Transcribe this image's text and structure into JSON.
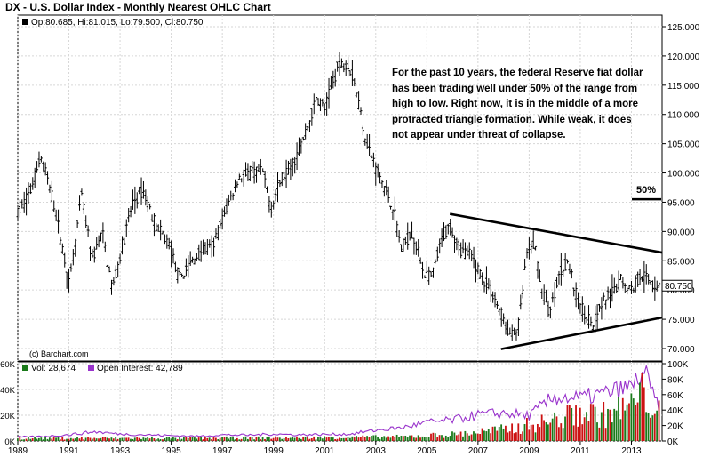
{
  "title": "DX - U.S. Dollar Index - Monthly Nearest OHLC Chart",
  "price_legend": "Op:80.685, Hi:81.015, Lo:79.500, Cl:80.750",
  "vol_legend": "Vol: 28,674",
  "oi_legend": "Open Interest: 42,789",
  "copyright": "(c) Barchart.com",
  "annotation_lines": [
    "For the past 10 years, the federal Reserve fiat dollar",
    "has been trading well under 50% of the range from",
    "high to low.  Right now, it is in the middle of a more",
    "protracted triangle formation.  While weak, it  does",
    "not appear under threat of collapse."
  ],
  "fifty_label": "50%",
  "last_price_label": "80.750",
  "colors": {
    "bars": "#000000",
    "vol_up": "#1a7a1a",
    "vol_down": "#cc1111",
    "open_interest": "#9933cc"
  },
  "chart_data": {
    "type": "ohlc",
    "price_axis": {
      "min": 70,
      "max": 125,
      "ticks": [
        "125.000",
        "120.000",
        "115.000",
        "110.000",
        "105.000",
        "100.000",
        "95.000",
        "90.000",
        "85.000",
        "80.000",
        "75.000",
        "70.000"
      ]
    },
    "x_ticks": [
      "1989",
      "1991",
      "1993",
      "1995",
      "1997",
      "1999",
      "2001",
      "2003",
      "2005",
      "2007",
      "2009",
      "2011",
      "2013"
    ],
    "x_range": [
      1989.0,
      2014.2
    ],
    "price_path": [
      [
        1989.0,
        93
      ],
      [
        1989.5,
        97
      ],
      [
        1989.9,
        103
      ],
      [
        1990.4,
        95
      ],
      [
        1990.8,
        86
      ],
      [
        1991.0,
        81
      ],
      [
        1991.5,
        96
      ],
      [
        1991.9,
        85
      ],
      [
        1992.3,
        90
      ],
      [
        1992.7,
        80
      ],
      [
        1993.0,
        86
      ],
      [
        1993.5,
        95
      ],
      [
        1993.9,
        97
      ],
      [
        1994.4,
        91
      ],
      [
        1994.9,
        88
      ],
      [
        1995.3,
        82
      ],
      [
        1995.7,
        84
      ],
      [
        1996.2,
        87
      ],
      [
        1996.6,
        87
      ],
      [
        1997.0,
        92
      ],
      [
        1997.6,
        99
      ],
      [
        1998.1,
        100
      ],
      [
        1998.6,
        100
      ],
      [
        1998.9,
        94
      ],
      [
        1999.3,
        99
      ],
      [
        1999.8,
        102
      ],
      [
        2000.2,
        106
      ],
      [
        2000.7,
        113
      ],
      [
        2001.0,
        111
      ],
      [
        2001.5,
        118
      ],
      [
        2001.9,
        119
      ],
      [
        2002.2,
        115
      ],
      [
        2002.6,
        106
      ],
      [
        2002.9,
        102
      ],
      [
        2003.3,
        98
      ],
      [
        2003.7,
        94
      ],
      [
        2004.0,
        87
      ],
      [
        2004.4,
        90
      ],
      [
        2004.9,
        83
      ],
      [
        2005.2,
        82
      ],
      [
        2005.6,
        89
      ],
      [
        2005.9,
        91
      ],
      [
        2006.3,
        87
      ],
      [
        2006.7,
        86
      ],
      [
        2007.2,
        82
      ],
      [
        2007.6,
        79
      ],
      [
        2007.9,
        76
      ],
      [
        2008.3,
        72
      ],
      [
        2008.6,
        74
      ],
      [
        2008.9,
        86
      ],
      [
        2009.2,
        88
      ],
      [
        2009.5,
        80
      ],
      [
        2009.8,
        76
      ],
      [
        2010.2,
        83
      ],
      [
        2010.5,
        85
      ],
      [
        2010.9,
        78
      ],
      [
        2011.2,
        76
      ],
      [
        2011.5,
        74
      ],
      [
        2011.9,
        78
      ],
      [
        2012.3,
        80
      ],
      [
        2012.6,
        82
      ],
      [
        2013.0,
        80
      ],
      [
        2013.4,
        83
      ],
      [
        2013.8,
        81
      ],
      [
        2014.1,
        80.75
      ]
    ],
    "trendlines": [
      {
        "from": [
          2005.9,
          93.0
        ],
        "to": [
          2014.2,
          86.4
        ]
      },
      {
        "from": [
          2007.9,
          69.9
        ],
        "to": [
          2014.2,
          75.3
        ]
      }
    ],
    "fifty_percent_level": 95.5,
    "volume_axis": {
      "min": 0,
      "max": 60000,
      "ticks": [
        "60K",
        "40K",
        "20K",
        "0K"
      ]
    },
    "open_interest_axis": {
      "min": 0,
      "max": 100000,
      "ticks": [
        "100K",
        "80K",
        "60K",
        "40K",
        "20K",
        "0K"
      ]
    },
    "open_interest_path": [
      [
        1989.0,
        5000
      ],
      [
        1990.0,
        6000
      ],
      [
        1991.0,
        8000
      ],
      [
        1992.0,
        12000
      ],
      [
        1993.0,
        9000
      ],
      [
        1994.0,
        8000
      ],
      [
        1995.0,
        7000
      ],
      [
        1996.0,
        6000
      ],
      [
        1997.0,
        8000
      ],
      [
        1998.0,
        7500
      ],
      [
        1999.0,
        9000
      ],
      [
        2000.0,
        8000
      ],
      [
        2001.0,
        8500
      ],
      [
        2002.0,
        9000
      ],
      [
        2003.0,
        14000
      ],
      [
        2004.0,
        17000
      ],
      [
        2005.0,
        24000
      ],
      [
        2006.0,
        27000
      ],
      [
        2007.0,
        34000
      ],
      [
        2008.0,
        36000
      ],
      [
        2009.0,
        33000
      ],
      [
        2010.0,
        57000
      ],
      [
        2011.0,
        55000
      ],
      [
        2012.0,
        62000
      ],
      [
        2013.0,
        70000
      ],
      [
        2013.5,
        90000
      ],
      [
        2013.8,
        62000
      ],
      [
        2014.1,
        43000
      ]
    ],
    "volume_envelope": [
      [
        1989.0,
        3000
      ],
      [
        1995.0,
        3000
      ],
      [
        2000.0,
        3500
      ],
      [
        2004.0,
        4500
      ],
      [
        2006.0,
        7000
      ],
      [
        2008.0,
        12000
      ],
      [
        2010.0,
        22000
      ],
      [
        2011.0,
        30000
      ],
      [
        2012.0,
        28000
      ],
      [
        2013.0,
        38000
      ],
      [
        2013.5,
        52000
      ],
      [
        2014.1,
        28674
      ]
    ]
  }
}
